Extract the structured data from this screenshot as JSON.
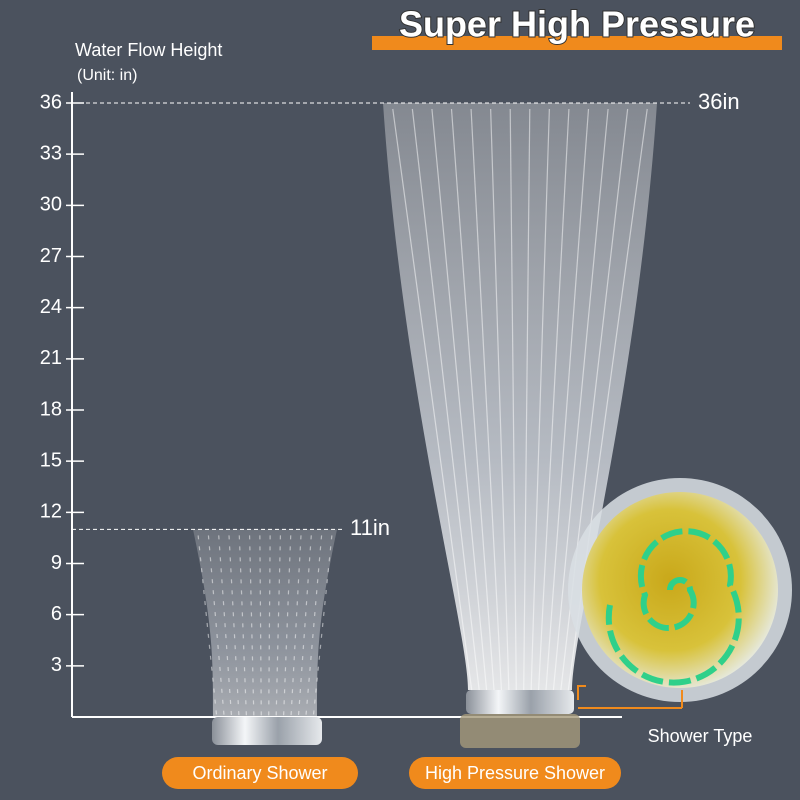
{
  "chart_data": {
    "type": "bar",
    "title": "Super High Pressure",
    "y_label": "Water Flow Height",
    "y_unit": "(Unit: in)",
    "x_label": "Shower Type",
    "categories": [
      "Ordinary Shower",
      "High Pressure Shower"
    ],
    "values": [
      11,
      36
    ],
    "value_labels": [
      "11in",
      "36in"
    ],
    "color": "#ffffff",
    "label_color": "#f08a1c",
    "ylim": [
      0,
      36
    ],
    "yticks": [
      3,
      6,
      9,
      12,
      15,
      18,
      21,
      24,
      27,
      30,
      33,
      36
    ]
  }
}
